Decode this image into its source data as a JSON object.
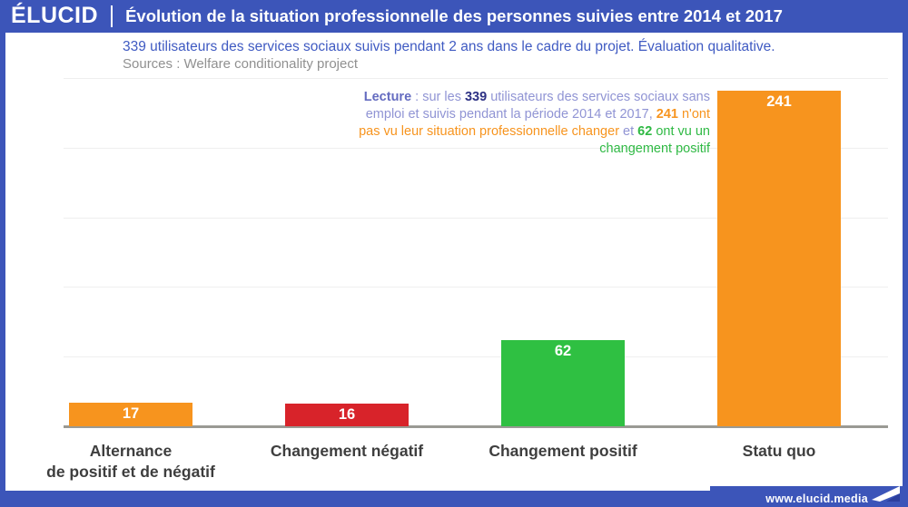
{
  "brand": {
    "logo_text": "ÉLUCID",
    "footer_url": "www.elucid.media"
  },
  "header": {
    "title": "Évolution de la situation professionnelle des personnes suivies entre 2014 et 2017"
  },
  "subtitle": {
    "line1": "339 utilisateurs des services sociaux suivis pendant 2 ans dans le cadre du projet. Évaluation qualitative.",
    "sources": "Sources : Welfare conditionality project"
  },
  "lecture": {
    "label": "Lecture",
    "seg_colon": " : sur les ",
    "n_total": "339",
    "seg_mid": " utilisateurs des services sociaux sans emploi et suivis pendant la période 2014 et 2017, ",
    "n_statu": "241",
    "seg_orange": " n'ont pas vu leur situation professionnelle changer ",
    "seg_et": "et ",
    "n_positif": "62",
    "seg_green": " ont vu un changement positif"
  },
  "chart_data": {
    "type": "bar",
    "categories": [
      "Alternance\nde positif et de négatif",
      "Changement négatif",
      "Changement positif",
      "Statu quo"
    ],
    "values": [
      17,
      16,
      62,
      241
    ],
    "bar_colors": [
      "#f7941e",
      "#d8232a",
      "#2fc042",
      "#f7941e"
    ],
    "title": "Évolution de la situation professionnelle des personnes suivies entre 2014 et 2017",
    "xlabel": "",
    "ylabel": "",
    "ylim": [
      0,
      250
    ],
    "gridline_interval": 50,
    "grid": true,
    "value_label_position": "inside-top",
    "value_label_color": "#ffffff"
  },
  "colors": {
    "accent_blue": "#3c55b9",
    "orange": "#f7941e",
    "red": "#d8232a",
    "green": "#2fc042",
    "label_gray": "#3e3e3e"
  }
}
